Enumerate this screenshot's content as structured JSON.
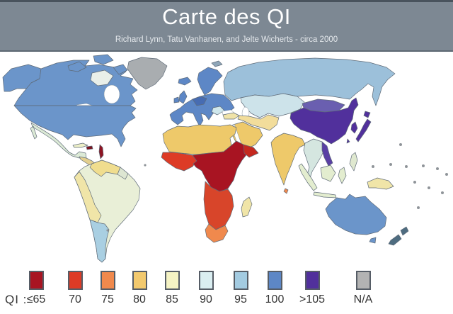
{
  "header": {
    "title": "Carte des QI",
    "subtitle": "Richard Lynn, Tatu Vanhanen, and Jelte Wicherts - circa 2000",
    "background": "#7d8893"
  },
  "legend": {
    "prefix": "QI :",
    "items": [
      {
        "label": "≤65",
        "color": "#a81422"
      },
      {
        "label": "70",
        "color": "#dd3b26"
      },
      {
        "label": "75",
        "color": "#f0894d"
      },
      {
        "label": "80",
        "color": "#f2c96e"
      },
      {
        "label": "85",
        "color": "#f5f3c4"
      },
      {
        "label": "90",
        "color": "#daeef1"
      },
      {
        "label": "95",
        "color": "#a3cbe1"
      },
      {
        "label": "100",
        "color": "#5d87c6"
      },
      {
        "label": ">105",
        "color": "#51309c"
      },
      {
        "label": "N/A",
        "color": "#b3b3b3"
      }
    ]
  },
  "map": {
    "water": "#ffffff",
    "outline": "#5f6b78",
    "regions": {
      "greenland": {
        "name": "Greenland",
        "bin": "N/A",
        "color": "#a9adb0"
      },
      "alaska": {
        "name": "Alaska",
        "bin": "100",
        "color": "#6b95ca"
      },
      "canada": {
        "name": "Canada",
        "bin": "100",
        "color": "#6b95ca"
      },
      "arctic_islands": {
        "name": "Canadian Arctic islands",
        "bin": "100",
        "color": "#6b95ca"
      },
      "baffin": {
        "name": "Baffin / Nunavut",
        "bin": "N/A",
        "color": "#e9efe9"
      },
      "usa": {
        "name": "United States",
        "bin": "100",
        "color": "#6b95ca"
      },
      "mexico": {
        "name": "Mexico",
        "bin": "90",
        "color": "#dcead6"
      },
      "central_america": {
        "name": "Central America",
        "bin": "80",
        "color": "#e3cf8e"
      },
      "cuba": {
        "name": "Cuba",
        "bin": "85",
        "color": "#eef0c8"
      },
      "hispaniola": {
        "name": "Hispaniola",
        "bin": "≤65",
        "color": "#7c1420"
      },
      "antilles": {
        "name": "Lesser Antilles",
        "bin": "≤65",
        "color": "#8e1322"
      },
      "colombia_venezuela": {
        "name": "Colombia / Venezuela",
        "bin": "80",
        "color": "#f0dd8e"
      },
      "guyanas": {
        "name": "Guyanas",
        "bin": "90",
        "color": "#dde6d2"
      },
      "brazil": {
        "name": "Brazil",
        "bin": "85",
        "color": "#e9efd7"
      },
      "peru_bolivia": {
        "name": "Peru / Bolivia",
        "bin": "85",
        "color": "#f0e5a8"
      },
      "argentina_chile": {
        "name": "Argentina / Chile",
        "bin": "95",
        "color": "#a9cfe2"
      },
      "iceland": {
        "name": "Iceland",
        "bin": "100",
        "color": "#5d87c6"
      },
      "uk": {
        "name": "United Kingdom",
        "bin": "100",
        "color": "#5d87c6"
      },
      "ireland": {
        "name": "Ireland",
        "bin": "100",
        "color": "#5d87c6"
      },
      "scandinavia": {
        "name": "Scandinavia",
        "bin": "100",
        "color": "#5d87c6"
      },
      "europe": {
        "name": "Europe",
        "bin": "100",
        "color": "#5d87c6"
      },
      "central_europe": {
        "name": "Central Europe",
        "bin": "100",
        "color": "#476cb2"
      },
      "balkans": {
        "name": "Balkans",
        "bin": "90",
        "color": "#cfe7ec"
      },
      "russia": {
        "name": "Russia",
        "bin": "95",
        "color": "#9cc0da"
      },
      "svalbard": {
        "name": "Svalbard",
        "bin": "95",
        "color": "#8fa6b8"
      },
      "central_asia": {
        "name": "Central Asia",
        "bin": "90",
        "color": "#cde3ea"
      },
      "turkey": {
        "name": "Turkey",
        "bin": "85",
        "color": "#f0e3a8"
      },
      "iran_region": {
        "name": "Iran / Middle East",
        "bin": "85",
        "color": "#f2dd9b"
      },
      "arabia": {
        "name": "Arabian Peninsula",
        "bin": "80",
        "color": "#eec96a"
      },
      "north_africa": {
        "name": "North Africa",
        "bin": "80",
        "color": "#eec96a"
      },
      "west_africa": {
        "name": "West Africa",
        "bin": "70",
        "color": "#dd3b26"
      },
      "central_africa": {
        "name": "Central Africa",
        "bin": "≤65",
        "color": "#a81422"
      },
      "horn_africa": {
        "name": "Horn of Africa",
        "bin": "70",
        "color": "#c4281f"
      },
      "southern_africa": {
        "name": "Southern Africa",
        "bin": "70",
        "color": "#d8452a"
      },
      "south_africa": {
        "name": "South Africa",
        "bin": "75",
        "color": "#f0894d"
      },
      "madagascar": {
        "name": "Madagascar",
        "bin": "80",
        "color": "#f0e5a8"
      },
      "india": {
        "name": "India",
        "bin": "80",
        "color": "#eec96a"
      },
      "sri_lanka": {
        "name": "Sri Lanka",
        "bin": "75",
        "color": "#f0894d"
      },
      "se_asia": {
        "name": "Southeast Asia",
        "bin": "90",
        "color": "#d5e6e0"
      },
      "vietnam": {
        "name": "Vietnam",
        "bin": ">105",
        "color": "#5a3fa4"
      },
      "indonesia": {
        "name": "Indonesia",
        "bin": "90",
        "color": "#e3edcf"
      },
      "philippines": {
        "name": "Philippines",
        "bin": "90",
        "color": "#dfe8cf"
      },
      "new_guinea": {
        "name": "New Guinea",
        "bin": "85",
        "color": "#f0e5a8"
      },
      "mongolia": {
        "name": "Mongolia",
        "bin": ">105",
        "color": "#6a5fb0"
      },
      "china": {
        "name": "China",
        "bin": ">105",
        "color": "#51309c"
      },
      "korea": {
        "name": "Korea",
        "bin": ">105",
        "color": "#51309c"
      },
      "japan": {
        "name": "Japan",
        "bin": ">105",
        "color": "#51309c"
      },
      "taiwan": {
        "name": "Taiwan",
        "bin": ">105",
        "color": "#51309c"
      },
      "australia": {
        "name": "Australia",
        "bin": "100",
        "color": "#6b95ca"
      },
      "new_zealand": {
        "name": "New Zealand",
        "bin": "100",
        "color": "#4e6c80"
      },
      "pacific_islands": {
        "name": "Pacific islands",
        "bin": "N/A",
        "color": "#8f9499"
      }
    }
  }
}
